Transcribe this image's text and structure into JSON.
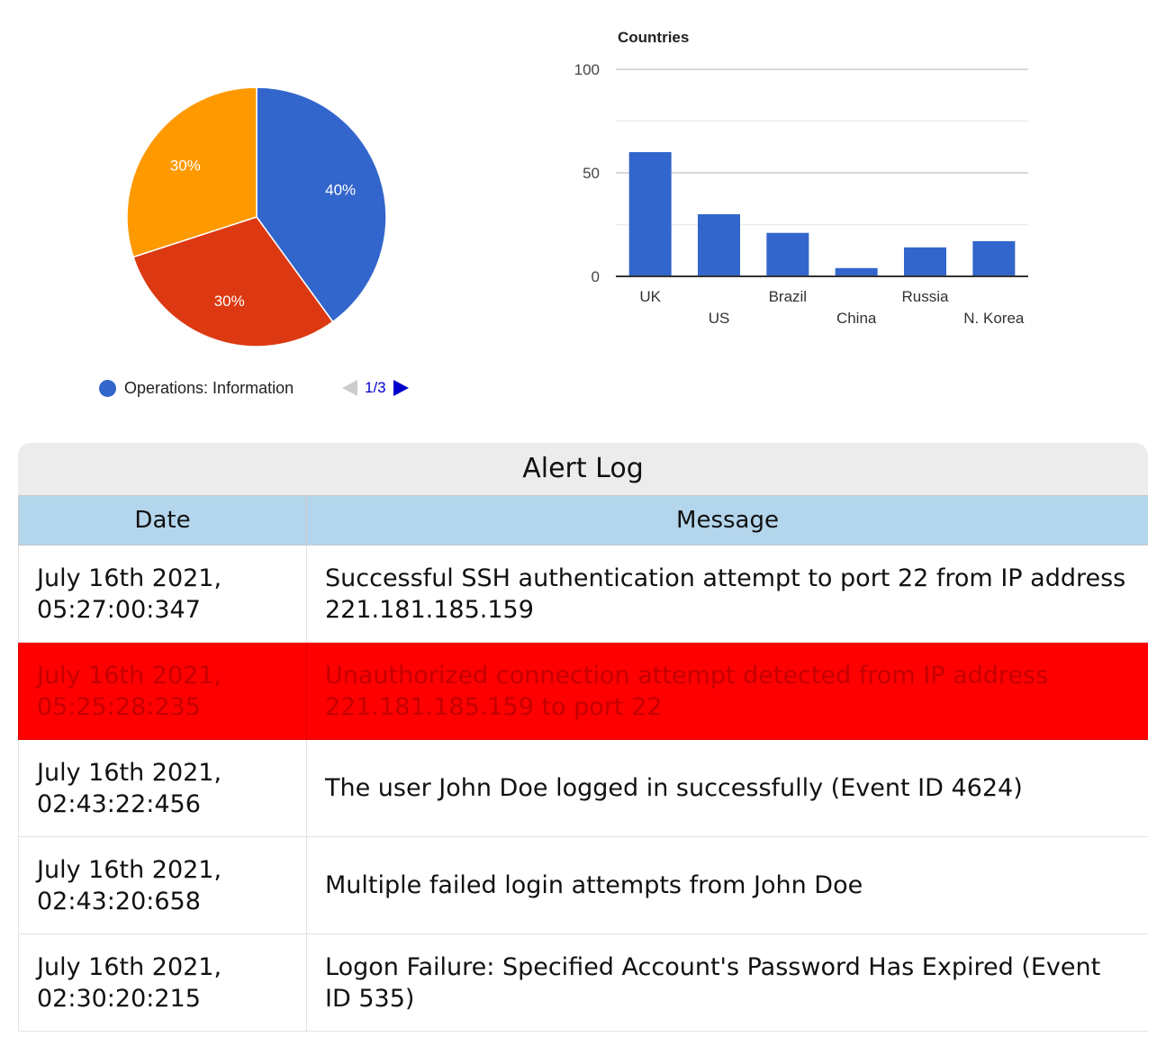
{
  "pie_chart": {
    "legend": {
      "label": "Operations: Information",
      "color": "#3366cc"
    },
    "pager": {
      "label": "1/3"
    }
  },
  "chart_data": [
    {
      "type": "pie",
      "slices": [
        {
          "label": "40%",
          "value": 40,
          "color": "#3366cc"
        },
        {
          "label": "30%",
          "value": 30,
          "color": "#dc3912"
        },
        {
          "label": "30%",
          "value": 30,
          "color": "#ff9900"
        }
      ]
    },
    {
      "type": "bar",
      "title": "Countries",
      "categories": [
        "UK",
        "US",
        "Brazil",
        "China",
        "Russia",
        "N. Korea"
      ],
      "values": [
        60,
        30,
        21,
        4,
        14,
        17
      ],
      "ylim": [
        0,
        100
      ],
      "yticks": [
        0,
        50,
        100
      ],
      "color": "#3366cc",
      "grid": true
    }
  ],
  "alert_log": {
    "title": "Alert Log",
    "columns": [
      "Date",
      "Message"
    ],
    "rows": [
      {
        "date_line1": "July 16th 2021,",
        "date_line2": "05:27:00:347",
        "message": "Successful SSH authentication attempt to port 22 from IP address 221.181.185.159",
        "highlight": false
      },
      {
        "date_line1": "July 16th 2021,",
        "date_line2": "05:25:28:235",
        "message": "Unauthorized connection attempt detected from IP address 221.181.185.159 to port 22",
        "highlight": true
      },
      {
        "date_line1": "July 16th 2021,",
        "date_line2": "02:43:22:456",
        "message": "The user John Doe logged in successfully (Event ID 4624)",
        "highlight": false
      },
      {
        "date_line1": "July 16th 2021,",
        "date_line2": "02:43:20:658",
        "message": "Multiple failed login attempts from John Doe",
        "highlight": false
      },
      {
        "date_line1": "July 16th 2021,",
        "date_line2": "02:30:20:215",
        "message": "Logon Failure: Specified Account's Password Has Expired (Event ID 535)",
        "highlight": false
      }
    ]
  }
}
